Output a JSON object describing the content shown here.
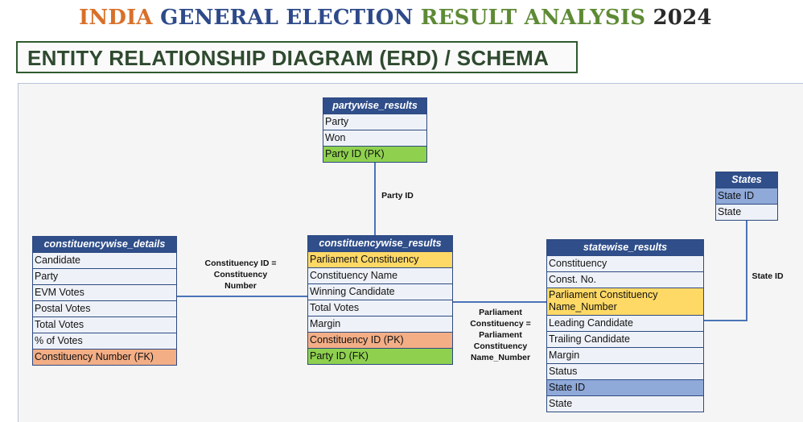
{
  "title": {
    "part1": "INDIA",
    "part2": "GENERAL ELECTION",
    "part3": "RESULT ANALYSIS",
    "part4": "2024"
  },
  "subtitle": "ENTITY RELATIONSHIP DIAGRAM (ERD) / SCHEMA",
  "entities": {
    "partywise": {
      "name": "partywise_results",
      "fields": [
        "Party",
        "Won",
        "Party ID (PK)"
      ]
    },
    "states": {
      "name": "States",
      "fields": [
        "State ID",
        "State"
      ]
    },
    "constituencywise_details": {
      "name": "constituencywise_details",
      "fields": [
        "Candidate",
        "Party",
        "EVM Votes",
        "Postal Votes",
        "Total Votes",
        "% of Votes",
        "Constituency Number (FK)"
      ]
    },
    "constituencywise_results": {
      "name": "constituencywise_results",
      "fields": [
        "Parliament Constituency",
        "Constituency Name",
        "Winning Candidate",
        "Total Votes",
        "Margin",
        "Constituency ID (PK)",
        "Party ID (FK)"
      ]
    },
    "statewise": {
      "name": "statewise_results",
      "fields": [
        "Constituency",
        "Const. No.",
        "Parliament Constituency Name_Number",
        "Leading Candidate",
        "Trailing Candidate",
        "Margin",
        "Status",
        "State ID",
        "State"
      ]
    }
  },
  "relations": {
    "party_id": "Party ID",
    "constituency_id_line1": "Constituency ID =",
    "constituency_id_line2": "Constituency",
    "constituency_id_line3": "Number",
    "parliament_line1": "Parliament",
    "parliament_line2": "Constituency =",
    "parliament_line3": "Parliament",
    "parliament_line4": "Constituency",
    "parliament_line5": "Name_Number",
    "state_id": "State ID"
  },
  "colors": {
    "header": "#2f4e8a",
    "pk_orange": "#f3ae86",
    "pk_green": "#8fd14f",
    "highlight_yellow": "#ffd966",
    "highlight_blue": "#8fa9d9",
    "connector": "#4a74b8"
  }
}
